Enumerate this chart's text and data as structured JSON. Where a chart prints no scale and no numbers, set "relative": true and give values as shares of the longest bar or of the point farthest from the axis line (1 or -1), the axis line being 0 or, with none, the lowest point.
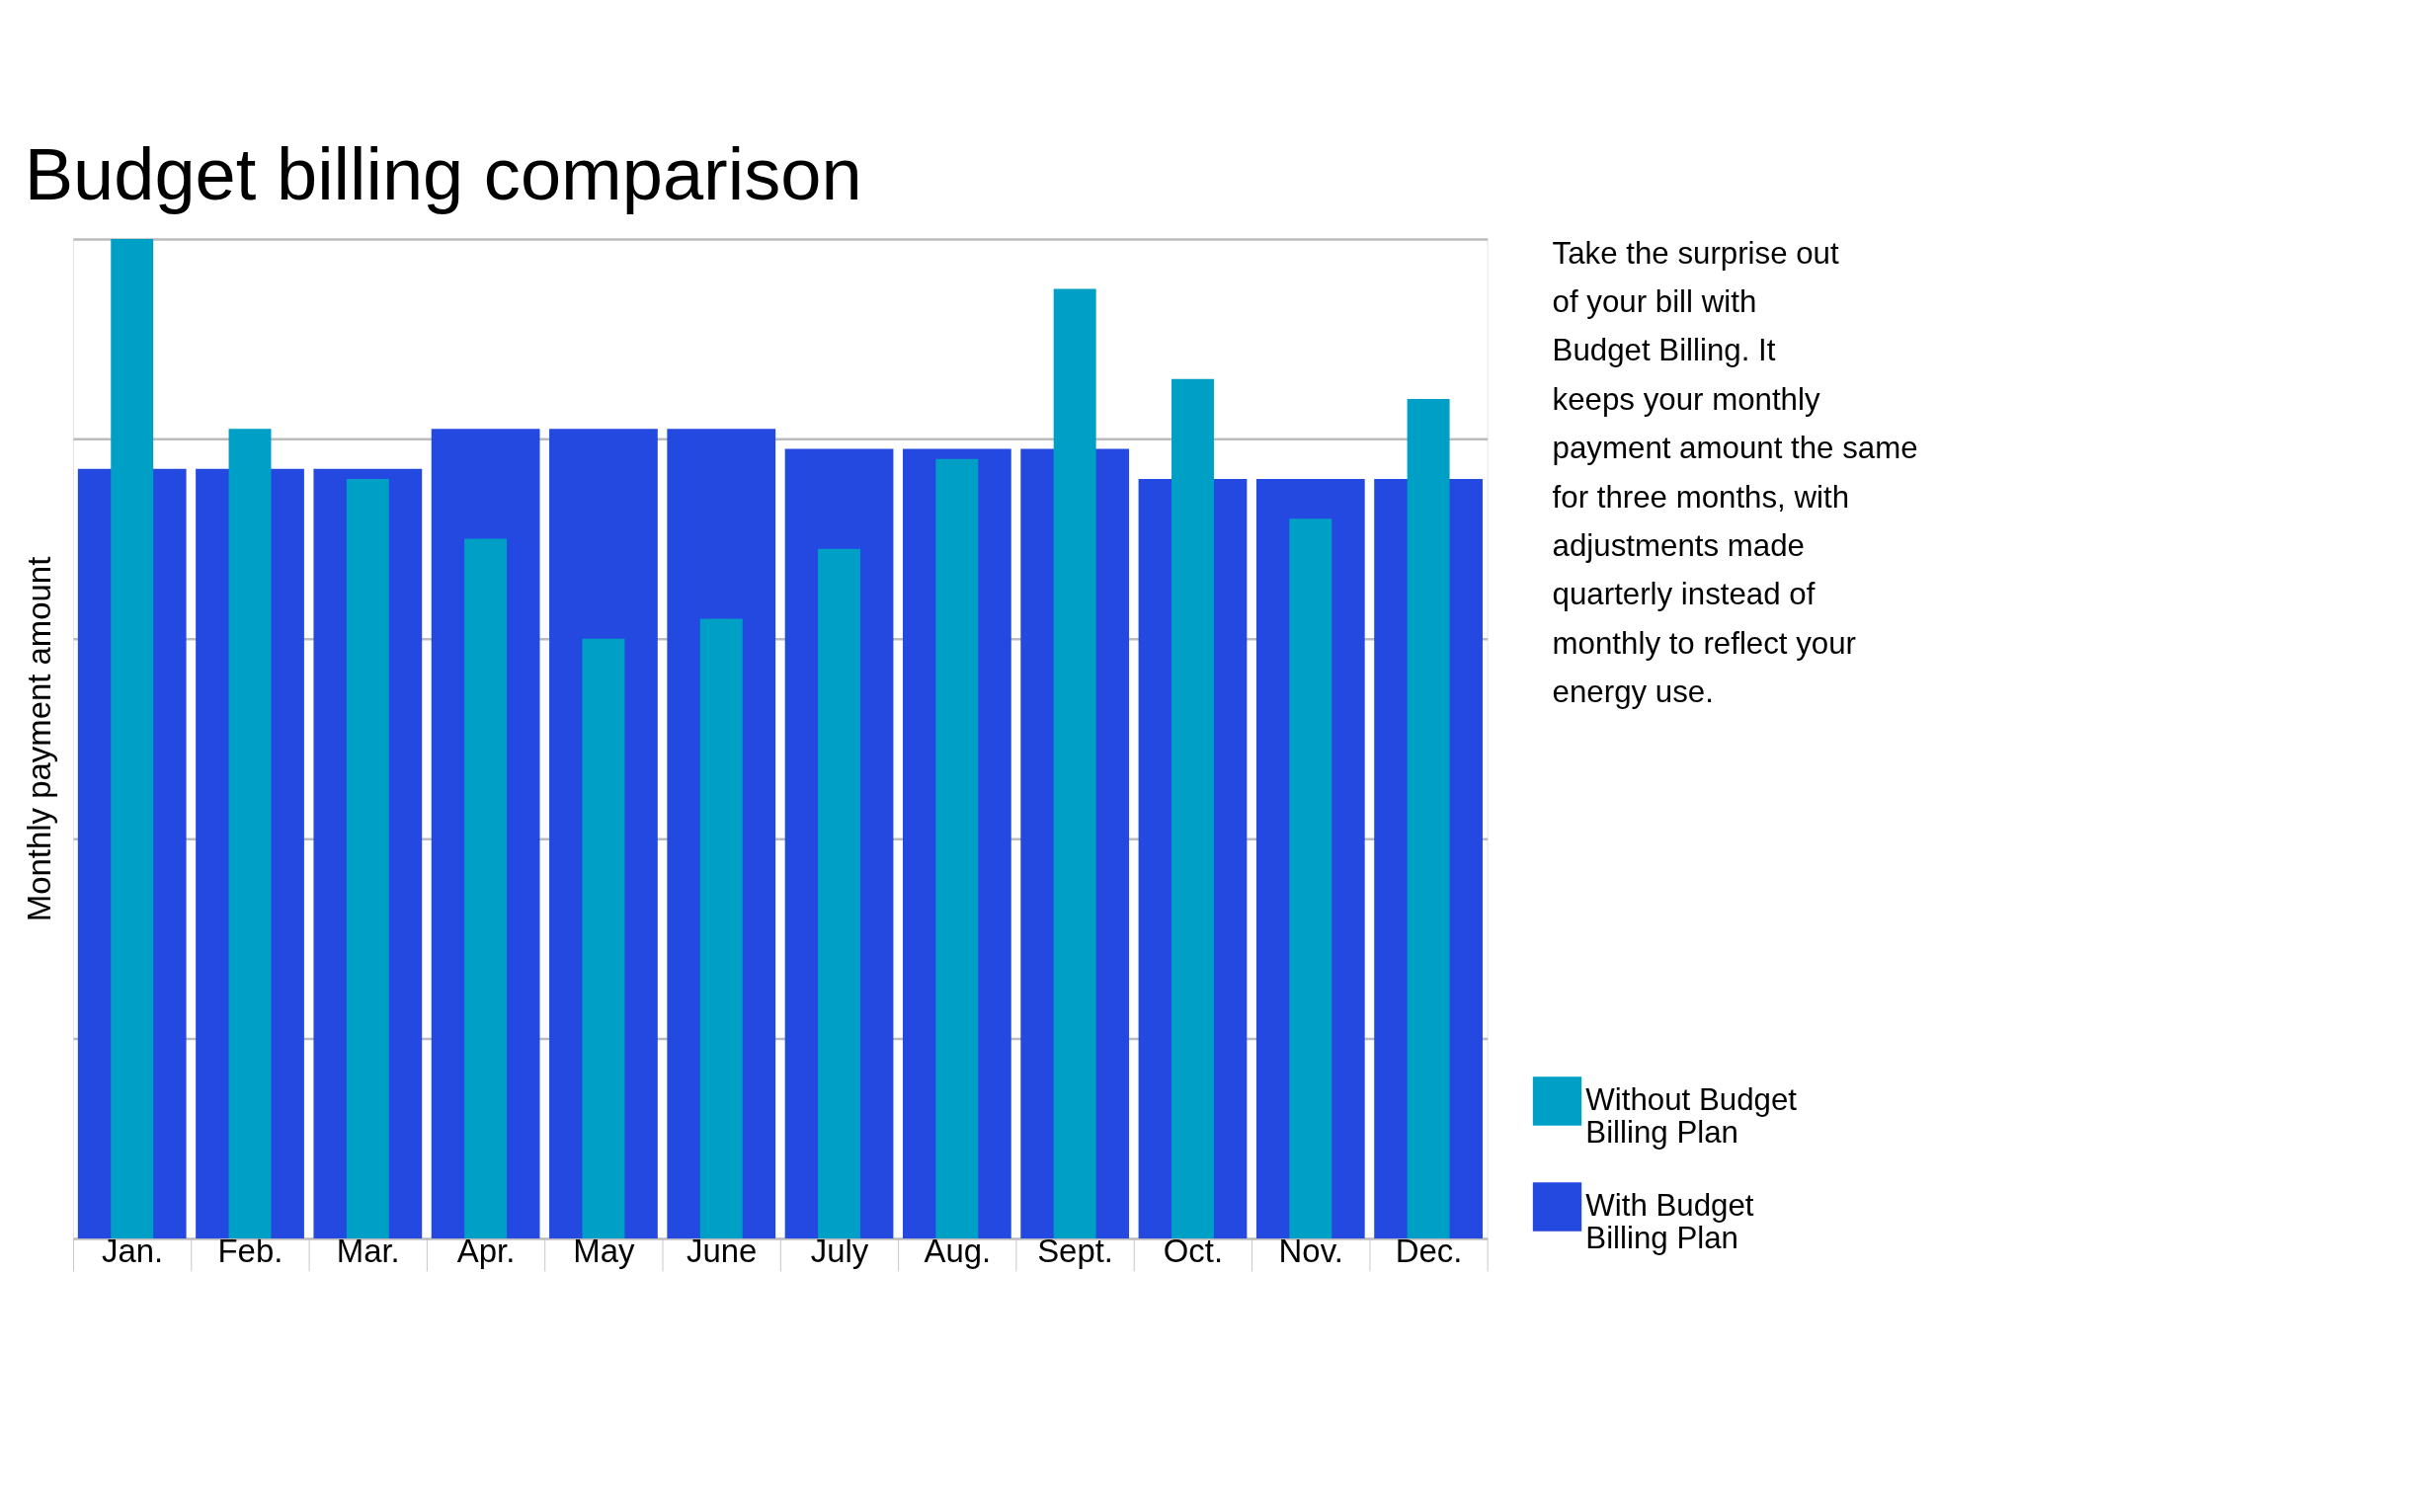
{
  "chart_data": {
    "type": "bar",
    "title": "Budget billing comparison",
    "ylabel": "Monthly payment amount",
    "categories": [
      "Jan.",
      "Feb.",
      "Mar.",
      "Apr.",
      "May",
      "June",
      "July",
      "Aug.",
      "Sept.",
      "Oct.",
      "Nov.",
      "Dec."
    ],
    "relative": true,
    "grid": true,
    "legend": "bottom right",
    "series": [
      {
        "name": "Without Budget Billing Plan",
        "color": "#00a0c6",
        "values": [
          1.0,
          0.81,
          0.76,
          0.7,
          0.6,
          0.62,
          0.69,
          0.78,
          0.95,
          0.86,
          0.72,
          0.84
        ]
      },
      {
        "name": "With Budget Billing Plan",
        "color": "#2349e0",
        "values": [
          0.77,
          0.77,
          0.77,
          0.81,
          0.81,
          0.81,
          0.79,
          0.79,
          0.79,
          0.76,
          0.76,
          0.76
        ]
      }
    ],
    "annotations": [
      "Take the surprise out of your bill with Budget Billing.  It keeps your monthly payment amount the same for three months, with adjustments made quarterly instead of monthly to reflect your energy use."
    ]
  }
}
